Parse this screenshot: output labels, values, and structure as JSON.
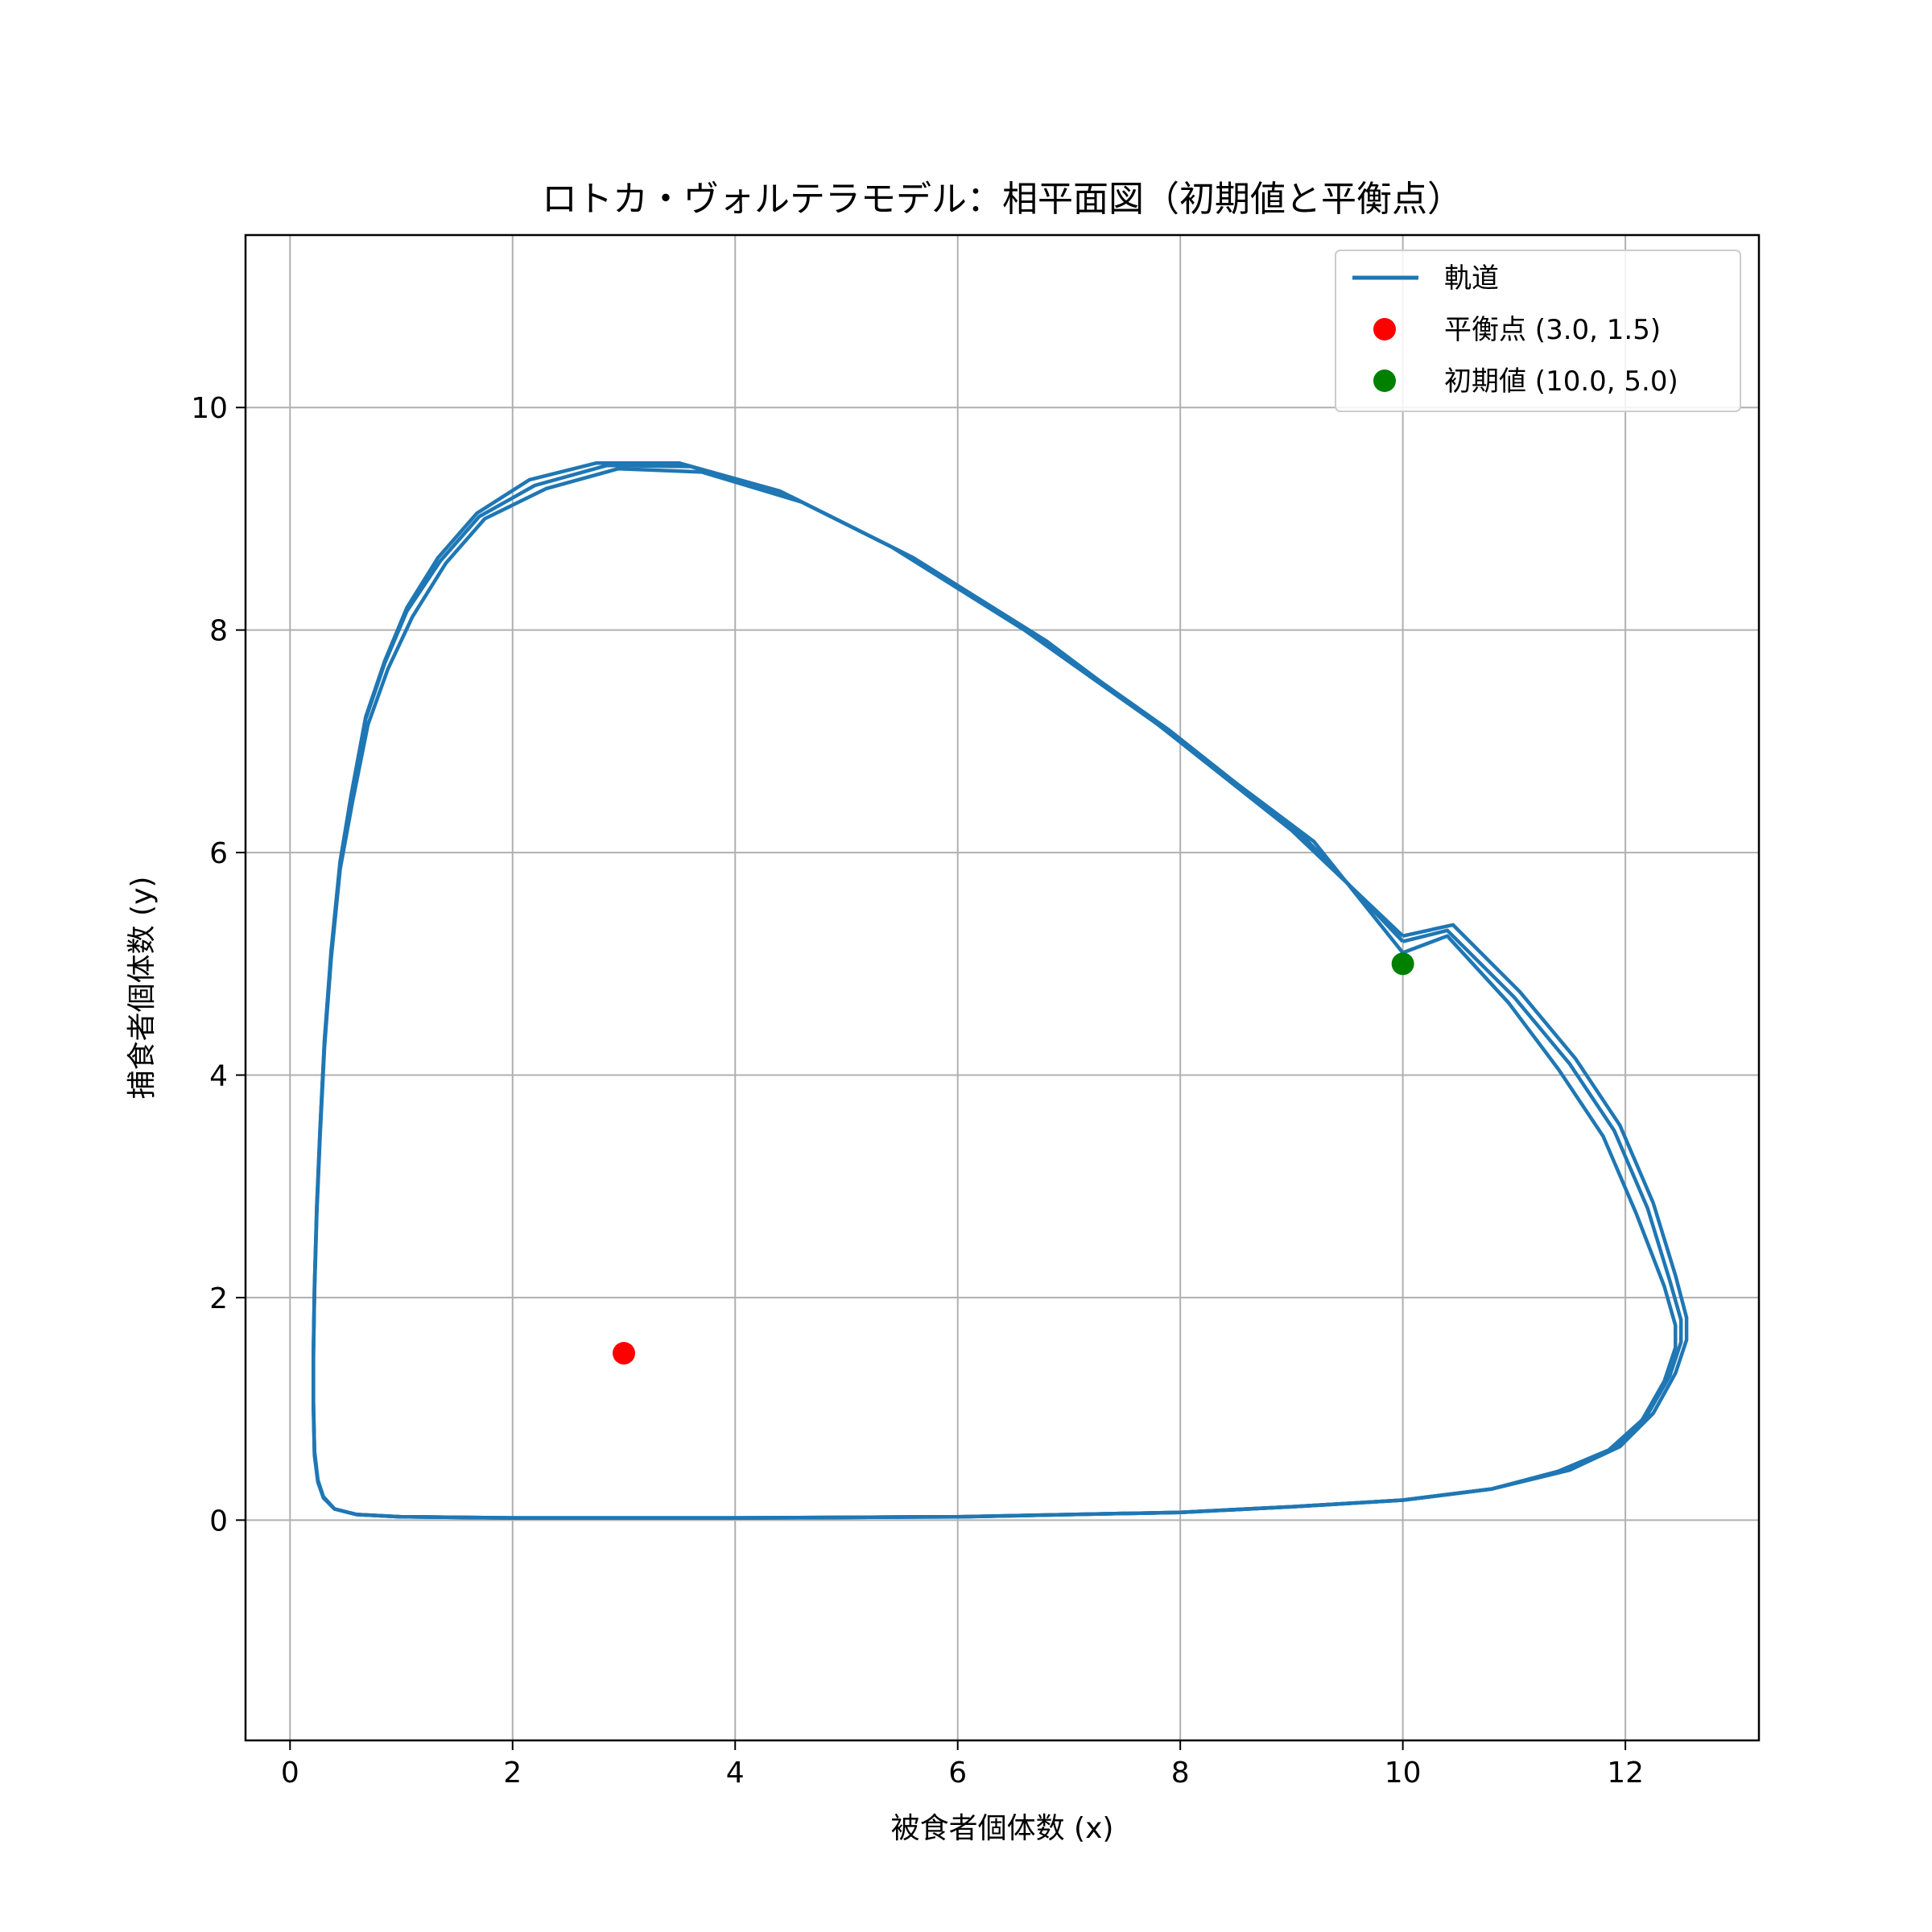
{
  "chart_data": {
    "type": "line",
    "title": "ロトカ・ヴォルテラモデル：相平面図（初期値と平衡点）",
    "xlabel": "被食者個体数 (x)",
    "ylabel": "捕食者個体数 (y)",
    "xlim": [
      -0.4,
      13.2
    ],
    "ylim": [
      -1.98,
      11.55
    ],
    "xticks": [
      0,
      2,
      4,
      6,
      8,
      10,
      12
    ],
    "yticks": [
      0,
      2,
      4,
      6,
      8,
      10
    ],
    "grid": true,
    "legend_position": "top-right",
    "series": [
      {
        "name": "軌道",
        "kind": "line",
        "color": "#1f77b4",
        "loops": [
          {
            "x": [
              10.0,
              9.1,
              7.9,
              6.7,
              5.5,
              4.5,
              3.6,
              2.85,
              2.2,
              1.7,
              1.35,
              1.05,
              0.85,
              0.68,
              0.55,
              0.45,
              0.37,
              0.31,
              0.27,
              0.24,
              0.22,
              0.21,
              0.21,
              0.22,
              0.25,
              0.3,
              0.4,
              0.6,
              1.0,
              2.0,
              4.0,
              6.0,
              8.0,
              9.0,
              10.0,
              10.8,
              11.5,
              11.9,
              12.2,
              12.4,
              12.5,
              12.5,
              12.4,
              12.2,
              11.9,
              11.5,
              11.0,
              10.4,
              10.0
            ],
            "y": [
              5.2,
              6.15,
              7.1,
              7.95,
              8.7,
              9.2,
              9.47,
              9.48,
              9.3,
              9.02,
              8.62,
              8.17,
              7.7,
              7.2,
              6.5,
              5.9,
              5.1,
              4.3,
              3.5,
              2.8,
              2.1,
              1.5,
              1.05,
              0.6,
              0.35,
              0.2,
              0.1,
              0.05,
              0.03,
              0.02,
              0.02,
              0.03,
              0.07,
              0.12,
              0.18,
              0.28,
              0.45,
              0.65,
              0.95,
              1.3,
              1.6,
              1.8,
              2.15,
              2.8,
              3.5,
              4.1,
              4.7,
              5.3,
              5.2
            ]
          },
          {
            "x": [
              10.0,
              9.2,
              8.0,
              6.8,
              5.6,
              4.6,
              3.7,
              2.95,
              2.3,
              1.75,
              1.4,
              1.1,
              0.88,
              0.7,
              0.56,
              0.45,
              0.37,
              0.31,
              0.27,
              0.24,
              0.22,
              0.21,
              0.21,
              0.22,
              0.25,
              0.3,
              0.4,
              0.6,
              1.0,
              2.0,
              4.0,
              6.0,
              8.0,
              9.0,
              10.0,
              10.8,
              11.4,
              11.85,
              12.15,
              12.35,
              12.45,
              12.45,
              12.35,
              12.1,
              11.8,
              11.4,
              10.95,
              10.4,
              10.0
            ],
            "y": [
              5.1,
              6.1,
              7.0,
              7.9,
              8.65,
              9.15,
              9.42,
              9.45,
              9.27,
              9.0,
              8.6,
              8.12,
              7.65,
              7.15,
              6.45,
              5.85,
              5.05,
              4.25,
              3.45,
              2.75,
              2.05,
              1.45,
              1.0,
              0.58,
              0.34,
              0.2,
              0.1,
              0.05,
              0.03,
              0.02,
              0.02,
              0.03,
              0.07,
              0.12,
              0.18,
              0.28,
              0.44,
              0.63,
              0.9,
              1.25,
              1.55,
              1.75,
              2.1,
              2.75,
              3.45,
              4.05,
              4.65,
              5.25,
              5.1
            ]
          },
          {
            "x": [
              10.0,
              9.0,
              7.8,
              6.6,
              5.4,
              4.4,
              3.5,
              2.75,
              2.15,
              1.68,
              1.33,
              1.05,
              0.85,
              0.68,
              0.55,
              0.45,
              0.37,
              0.31,
              0.27,
              0.24,
              0.22,
              0.21,
              0.21,
              0.22,
              0.25,
              0.3,
              0.4,
              0.6,
              1.0,
              2.0,
              4.0,
              6.0,
              8.0,
              9.0,
              10.0,
              10.8,
              11.5,
              11.95,
              12.25,
              12.45,
              12.55,
              12.55,
              12.45,
              12.25,
              11.95,
              11.55,
              11.05,
              10.45,
              10.0
            ],
            "y": [
              5.25,
              6.2,
              7.15,
              8.0,
              8.75,
              9.25,
              9.5,
              9.5,
              9.35,
              9.05,
              8.65,
              8.2,
              7.72,
              7.22,
              6.52,
              5.92,
              5.12,
              4.32,
              3.52,
              2.82,
              2.12,
              1.52,
              1.07,
              0.62,
              0.36,
              0.21,
              0.1,
              0.05,
              0.03,
              0.02,
              0.02,
              0.03,
              0.07,
              0.12,
              0.18,
              0.28,
              0.45,
              0.66,
              0.96,
              1.32,
              1.62,
              1.82,
              2.2,
              2.85,
              3.55,
              4.15,
              4.75,
              5.35,
              5.25
            ]
          }
        ]
      },
      {
        "name": "平衡点 (3.0, 1.5)",
        "kind": "point",
        "color": "#ff0000",
        "x": [
          3.0
        ],
        "y": [
          1.5
        ]
      },
      {
        "name": "初期値 (10.0, 5.0)",
        "kind": "point",
        "color": "#008000",
        "x": [
          10.0
        ],
        "y": [
          5.0
        ]
      }
    ]
  }
}
